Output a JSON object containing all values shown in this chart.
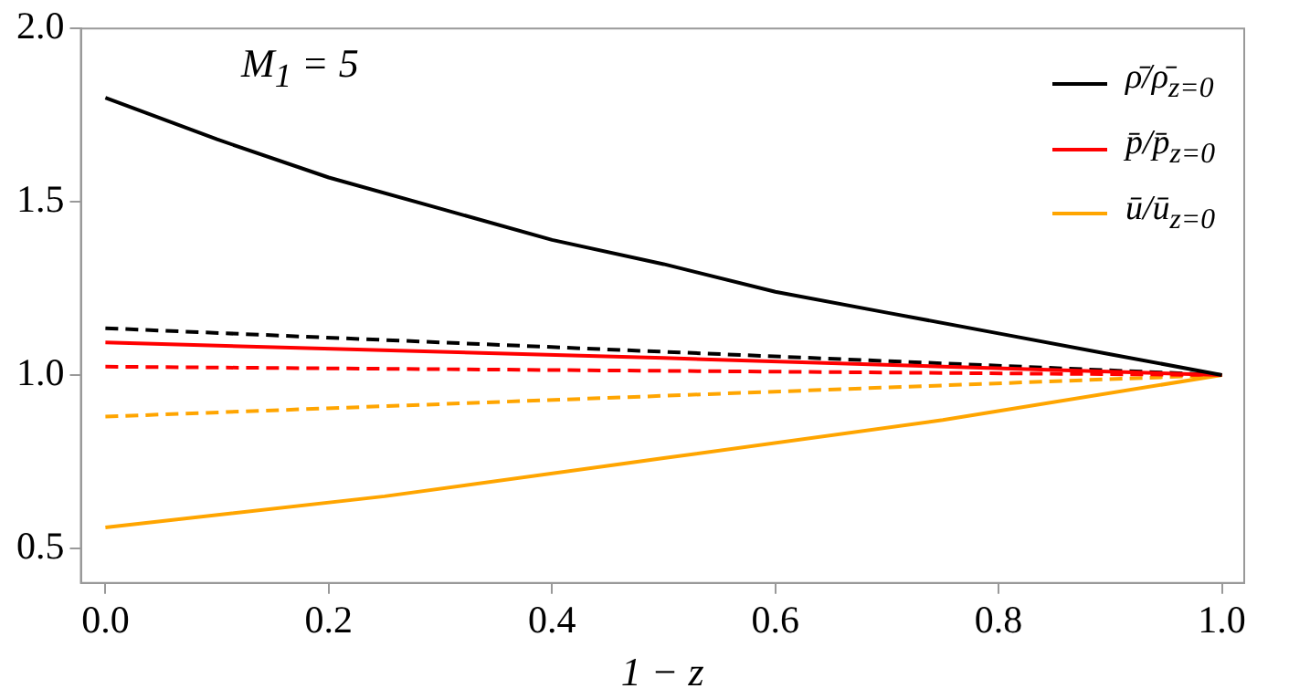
{
  "chart_data": {
    "type": "line",
    "xlabel": "1 − z",
    "annotations": [
      "M$_{1}$ = 5"
    ],
    "xlim": [
      -0.022,
      1.02
    ],
    "xticks": [
      {
        "value": 0,
        "label": "0.0"
      },
      0.2,
      0.4,
      0.6,
      0.8,
      {
        "value": 1,
        "label": "1.0"
      }
    ],
    "ylim": [
      0.4,
      2.0
    ],
    "yticks": [
      0.5,
      {
        "value": 1,
        "label": "1.0"
      },
      1.5,
      {
        "value": 2,
        "label": "2.0"
      }
    ],
    "grid": false,
    "legend": "top right",
    "marker": "none",
    "series": [
      {
        "name": "ρ̄/ρ̄$_{z=0}$",
        "color": "#000000",
        "line_style": "solid",
        "x": [
          0,
          0.1,
          0.2,
          0.3,
          0.4,
          0.5,
          0.6,
          0.7,
          0.8,
          0.9,
          1.0
        ],
        "values": [
          1.8,
          1.68,
          1.57,
          1.48,
          1.39,
          1.32,
          1.24,
          1.18,
          1.12,
          1.06,
          1.0
        ]
      },
      {
        "name": "p̄/p̄$_{z=0}$",
        "color": "#ff0000",
        "line_style": "solid",
        "x": [
          0,
          0.5,
          1.0
        ],
        "values": [
          1.094,
          1.049,
          1.0
        ]
      },
      {
        "name": "ū/ū$_{z=0}$",
        "color": "#ffa500",
        "line_style": "solid",
        "x": [
          0,
          0.25,
          0.5,
          0.75,
          1.0
        ],
        "values": [
          0.56,
          0.65,
          0.76,
          0.87,
          1.0
        ]
      },
      {
        "color": "#000000",
        "line_style": "dashed",
        "x": [
          0,
          0.5,
          1.0
        ],
        "values": [
          1.135,
          1.067,
          1.0
        ]
      },
      {
        "color": "#ff0000",
        "line_style": "dashed",
        "x": [
          0,
          0.5,
          1.0
        ],
        "values": [
          1.024,
          1.012,
          1.0
        ]
      },
      {
        "color": "#ffa500",
        "line_style": "dashed",
        "x": [
          0,
          0.5,
          1.0
        ],
        "values": [
          0.88,
          0.94,
          1.0
        ]
      }
    ]
  }
}
